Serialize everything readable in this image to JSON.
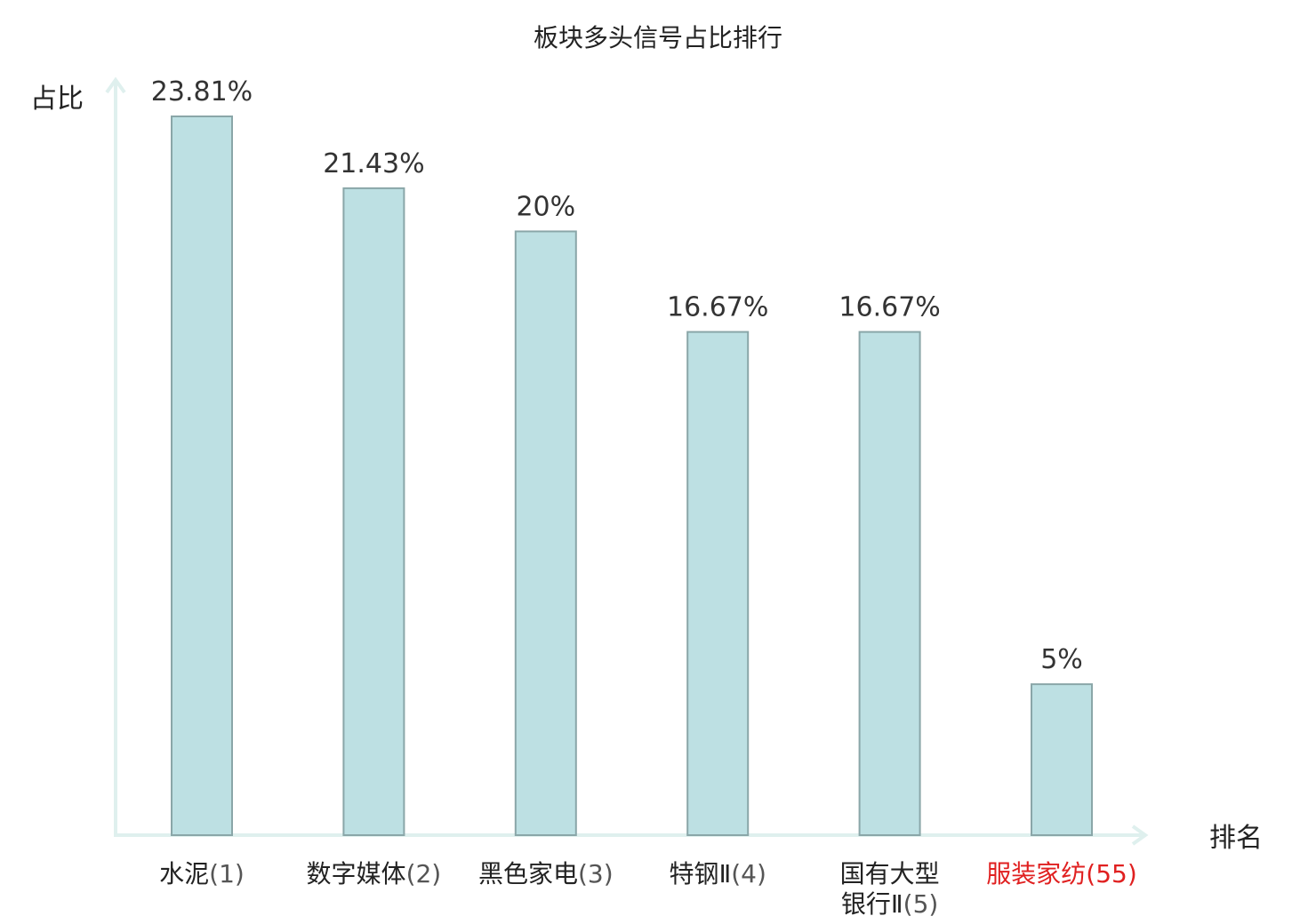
{
  "chart_data": {
    "type": "bar",
    "title": "板块多头信号占比排行",
    "ylabel": "占比",
    "xlabel": "排名",
    "ylim": [
      0,
      25
    ],
    "grid": false,
    "legend": "none",
    "colors": {
      "bar_fill": "#bde0e3",
      "bar_stroke": "#8aa6a8",
      "axis": "#dff0ee",
      "highlight": "#e02020",
      "text": "#333333"
    },
    "categories": [
      {
        "name": [
          "水泥"
        ],
        "rank": "(1)",
        "highlight": false
      },
      {
        "name": [
          "数字媒体"
        ],
        "rank": "(2)",
        "highlight": false
      },
      {
        "name": [
          "黑色家电"
        ],
        "rank": "(3)",
        "highlight": false
      },
      {
        "name": [
          "特钢Ⅱ"
        ],
        "rank": "(4)",
        "highlight": false
      },
      {
        "name": [
          "国有大型",
          "银行Ⅱ"
        ],
        "rank": "(5)",
        "highlight": false
      },
      {
        "name": [
          "服装家纺"
        ],
        "rank": "(55)",
        "highlight": true
      }
    ],
    "values": [
      23.81,
      21.43,
      20,
      16.67,
      16.67,
      5
    ],
    "data_labels": [
      "23.81%",
      "21.43%",
      "20%",
      "16.67%",
      "16.67%",
      "5%"
    ]
  }
}
